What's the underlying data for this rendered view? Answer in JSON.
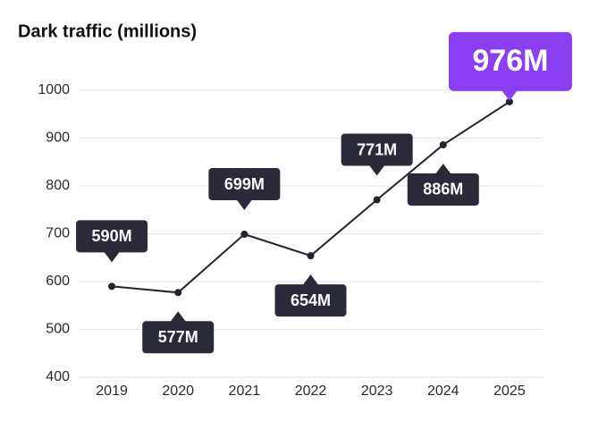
{
  "chart_data": {
    "type": "line",
    "title": "Dark traffic (millions)",
    "categories": [
      "2019",
      "2020",
      "2021",
      "2022",
      "2023",
      "2024",
      "2025"
    ],
    "values": [
      590,
      577,
      699,
      654,
      771,
      886,
      976
    ],
    "value_labels": [
      "590M",
      "577M",
      "699M",
      "654M",
      "771M",
      "886M",
      "976M"
    ],
    "color": "#24232f",
    "label_color": "#2b2a38",
    "highlight_color": "#8b3ff2",
    "ylim": [
      400,
      1000
    ],
    "yticks": [
      400,
      500,
      600,
      700,
      800,
      900,
      1000
    ],
    "grid": true
  }
}
